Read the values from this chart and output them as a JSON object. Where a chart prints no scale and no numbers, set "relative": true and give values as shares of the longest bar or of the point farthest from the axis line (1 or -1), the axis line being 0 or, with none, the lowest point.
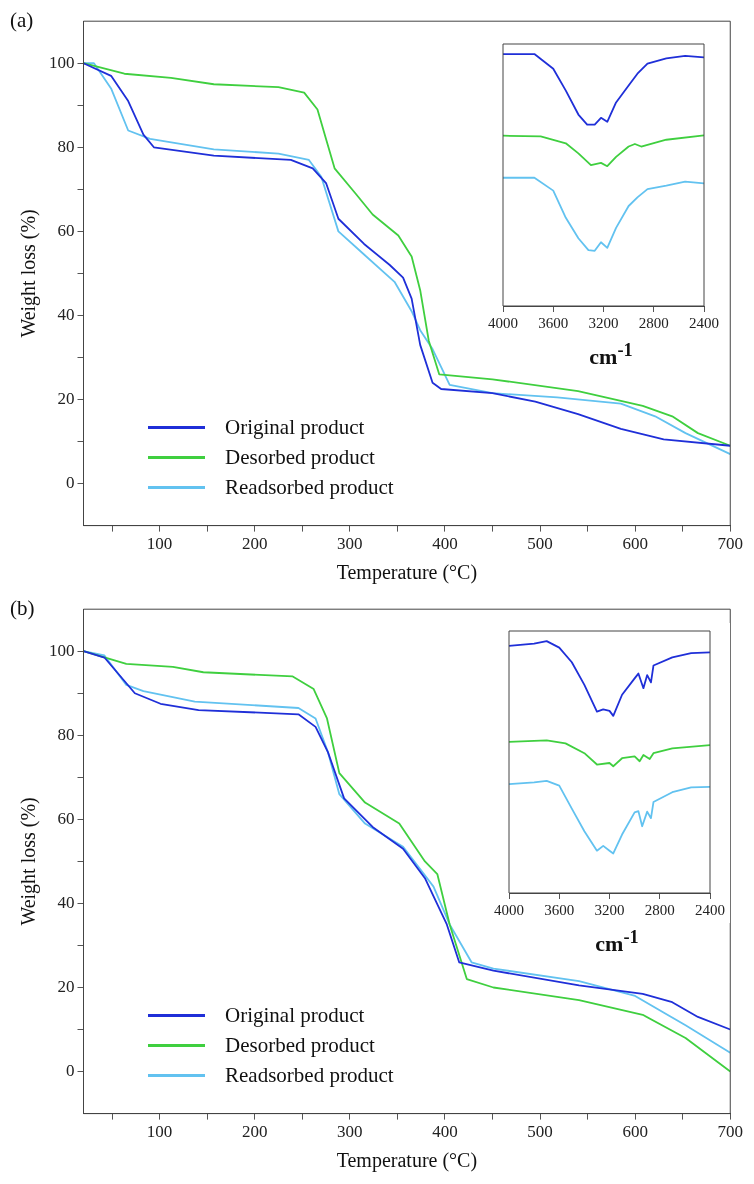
{
  "chart_data": [
    {
      "type": "line",
      "title": "(a)",
      "xlabel": "Temperature (°C)",
      "ylabel": "Weight loss (%)",
      "xlim": [
        20,
        700
      ],
      "ylim": [
        -10,
        110
      ],
      "xticks": [
        {
          "value": 50,
          "label": null
        },
        100,
        {
          "value": 150,
          "label": null
        },
        200,
        {
          "value": 250,
          "label": null
        },
        300,
        {
          "value": 350,
          "label": null
        },
        400,
        {
          "value": 450,
          "label": null
        },
        500,
        {
          "value": 550,
          "label": null
        },
        600,
        {
          "value": 650,
          "label": null
        },
        700
      ],
      "yticks": [
        0,
        {
          "value": 10,
          "label": null
        },
        20,
        {
          "value": 30,
          "label": null
        },
        40,
        {
          "value": 50,
          "label": null
        },
        60,
        {
          "value": 70,
          "label": null
        },
        80,
        {
          "value": 90,
          "label": null
        },
        100
      ],
      "grid": false,
      "legend": "bottom left",
      "marker": "none",
      "series": [
        {
          "name": "Original product",
          "color": "#1f2fd8",
          "x": [
            20,
            49,
            67,
            83,
            94,
            157,
            238,
            261,
            275,
            288,
            315,
            342,
            356,
            365,
            374,
            387,
            396,
            450,
            495,
            540,
            585,
            630,
            700
          ],
          "values": [
            100,
            97,
            91,
            83,
            80,
            78,
            77,
            75,
            71.5,
            63,
            57,
            52,
            49,
            44,
            33,
            24,
            22.5,
            21.5,
            19.5,
            16.5,
            13,
            10.5,
            9
          ]
        },
        {
          "name": "Desorbed product",
          "color": "#3fcf3f",
          "x": [
            20,
            63,
            112,
            157,
            225,
            252,
            266,
            275,
            284,
            306,
            324,
            351,
            365,
            374,
            383,
            394,
            450,
            540,
            608,
            639,
            666,
            700
          ],
          "values": [
            100,
            97.5,
            96.5,
            95,
            94.3,
            93,
            89,
            82,
            75,
            69,
            64,
            59,
            54,
            46,
            34,
            26,
            24.8,
            22,
            18.5,
            16,
            12,
            9
          ]
        },
        {
          "name": "Readsorbed product",
          "color": "#62c2f0",
          "x": [
            20,
            31,
            49,
            67,
            90,
            157,
            225,
            257,
            270,
            288,
            315,
            347,
            365,
            374,
            387,
            405,
            450,
            518,
            585,
            621,
            653,
            700
          ],
          "values": [
            100,
            100,
            94,
            84,
            82,
            79.5,
            78.5,
            77,
            73,
            60,
            54.5,
            48,
            41,
            36.5,
            32,
            23.5,
            21.5,
            20.5,
            19,
            16,
            12,
            7
          ]
        }
      ]
    },
    {
      "type": "line",
      "xlabel": "cm$^{-1}$",
      "xlim": [
        4000,
        2400
      ],
      "xticks": [
        4000,
        3600,
        3200,
        2800,
        2400
      ],
      "relative": true,
      "tick_labels": "x",
      "grid": false,
      "marker": "none",
      "series": [
        {
          "color": "#1f2fd8",
          "x": [
            4000,
            3750,
            3600,
            3500,
            3400,
            3330,
            3270,
            3220,
            3170,
            3100,
            3000,
            2930,
            2850,
            2700,
            2550,
            2400
          ],
          "values": [
            1,
            1,
            0.942,
            0.855,
            0.76,
            0.72,
            0.72,
            0.747,
            0.731,
            0.808,
            0.875,
            0.922,
            0.962,
            0.983,
            0.993,
            0.987
          ]
        },
        {
          "color": "#3fcf3f",
          "x": [
            4000,
            3700,
            3500,
            3400,
            3300,
            3220,
            3170,
            3100,
            3000,
            2950,
            2900,
            2700,
            2400
          ],
          "values": [
            0.676,
            0.673,
            0.646,
            0.606,
            0.559,
            0.568,
            0.555,
            0.592,
            0.633,
            0.643,
            0.633,
            0.66,
            0.677
          ]
        },
        {
          "color": "#62c2f0",
          "x": [
            4000,
            3750,
            3600,
            3500,
            3400,
            3320,
            3270,
            3220,
            3170,
            3100,
            3000,
            2930,
            2850,
            2700,
            2550,
            2400
          ],
          "values": [
            0.509,
            0.509,
            0.458,
            0.35,
            0.269,
            0.222,
            0.219,
            0.253,
            0.231,
            0.31,
            0.397,
            0.431,
            0.464,
            0.478,
            0.494,
            0.487
          ]
        }
      ]
    },
    {
      "type": "line",
      "title": "(b)",
      "xlabel": "Temperature (°C)",
      "ylabel": "Weight loss (%)",
      "xlim": [
        20,
        700
      ],
      "ylim": [
        -10,
        110
      ],
      "xticks": [
        {
          "value": 50,
          "label": null
        },
        100,
        {
          "value": 150,
          "label": null
        },
        200,
        {
          "value": 250,
          "label": null
        },
        300,
        {
          "value": 350,
          "label": null
        },
        400,
        {
          "value": 450,
          "label": null
        },
        500,
        {
          "value": 550,
          "label": null
        },
        600,
        {
          "value": 650,
          "label": null
        },
        700
      ],
      "yticks": [
        0,
        {
          "value": 10,
          "label": null
        },
        20,
        {
          "value": 30,
          "label": null
        },
        40,
        {
          "value": 50,
          "label": null
        },
        60,
        {
          "value": 70,
          "label": null
        },
        80,
        {
          "value": 90,
          "label": null
        },
        100
      ],
      "grid": false,
      "legend": "bottom left",
      "marker": "none",
      "series": [
        {
          "name": "Original product",
          "color": "#1f2fd8",
          "x": [
            20,
            42,
            74,
            101,
            141,
            246,
            264,
            277,
            294,
            325,
            356,
            379,
            402,
            415,
            451,
            541,
            608,
            639,
            666,
            700
          ],
          "values": [
            100,
            98.5,
            90,
            87.5,
            86,
            85,
            82,
            76,
            65,
            58,
            53,
            46,
            35,
            26,
            24,
            20.5,
            18.5,
            16.5,
            13,
            10
          ]
        },
        {
          "name": "Desorbed product",
          "color": "#3fcf3f",
          "x": [
            20,
            65,
            114,
            146,
            240,
            262,
            276,
            289,
            316,
            352,
            379,
            392,
            405,
            423,
            451,
            541,
            608,
            653,
            700
          ],
          "values": [
            100,
            97,
            96.3,
            95,
            94,
            91,
            84,
            71,
            64,
            59,
            50,
            47,
            35,
            22,
            20,
            17,
            13.5,
            8,
            0
          ]
        },
        {
          "name": "Readsorbed product",
          "color": "#62c2f0",
          "x": [
            20,
            42,
            65,
            83,
            137,
            246,
            264,
            277,
            289,
            316,
            356,
            388,
            405,
            428,
            451,
            541,
            600,
            653,
            700
          ],
          "values": [
            100,
            99,
            92,
            90.5,
            88,
            86.5,
            84,
            76,
            66,
            59,
            53.5,
            44,
            35,
            26,
            24.5,
            21.5,
            18,
            11,
            4.5
          ]
        }
      ]
    },
    {
      "type": "line",
      "xlabel": "cm$^{-1}$",
      "xlim": [
        4000,
        2400
      ],
      "xticks": [
        4000,
        3600,
        3200,
        2800,
        2400
      ],
      "relative": true,
      "tick_labels": "x",
      "grid": false,
      "marker": "none",
      "series": [
        {
          "color": "#1f2fd8",
          "x": [
            4000,
            3800,
            3700,
            3600,
            3500,
            3400,
            3300,
            3250,
            3200,
            3170,
            3100,
            3000,
            2970,
            2930,
            2900,
            2870,
            2850,
            2700,
            2550,
            2400
          ],
          "values": [
            0.981,
            0.99,
            1,
            0.974,
            0.916,
            0.826,
            0.72,
            0.729,
            0.723,
            0.703,
            0.787,
            0.852,
            0.871,
            0.813,
            0.865,
            0.836,
            0.903,
            0.935,
            0.952,
            0.955
          ]
        },
        {
          "color": "#3fcf3f",
          "x": [
            4000,
            3700,
            3550,
            3400,
            3300,
            3200,
            3170,
            3100,
            3000,
            2960,
            2930,
            2880,
            2850,
            2700,
            2400
          ],
          "values": [
            0.6,
            0.606,
            0.594,
            0.555,
            0.51,
            0.516,
            0.503,
            0.535,
            0.542,
            0.523,
            0.548,
            0.532,
            0.555,
            0.574,
            0.587
          ]
        },
        {
          "color": "#62c2f0",
          "x": [
            4000,
            3800,
            3700,
            3600,
            3500,
            3400,
            3300,
            3250,
            3200,
            3170,
            3100,
            3000,
            2970,
            2940,
            2900,
            2870,
            2850,
            2700,
            2550,
            2400
          ],
          "values": [
            0.432,
            0.439,
            0.445,
            0.426,
            0.335,
            0.245,
            0.168,
            0.187,
            0.168,
            0.157,
            0.232,
            0.32,
            0.325,
            0.265,
            0.323,
            0.297,
            0.361,
            0.4,
            0.419,
            0.421
          ]
        }
      ]
    }
  ]
}
